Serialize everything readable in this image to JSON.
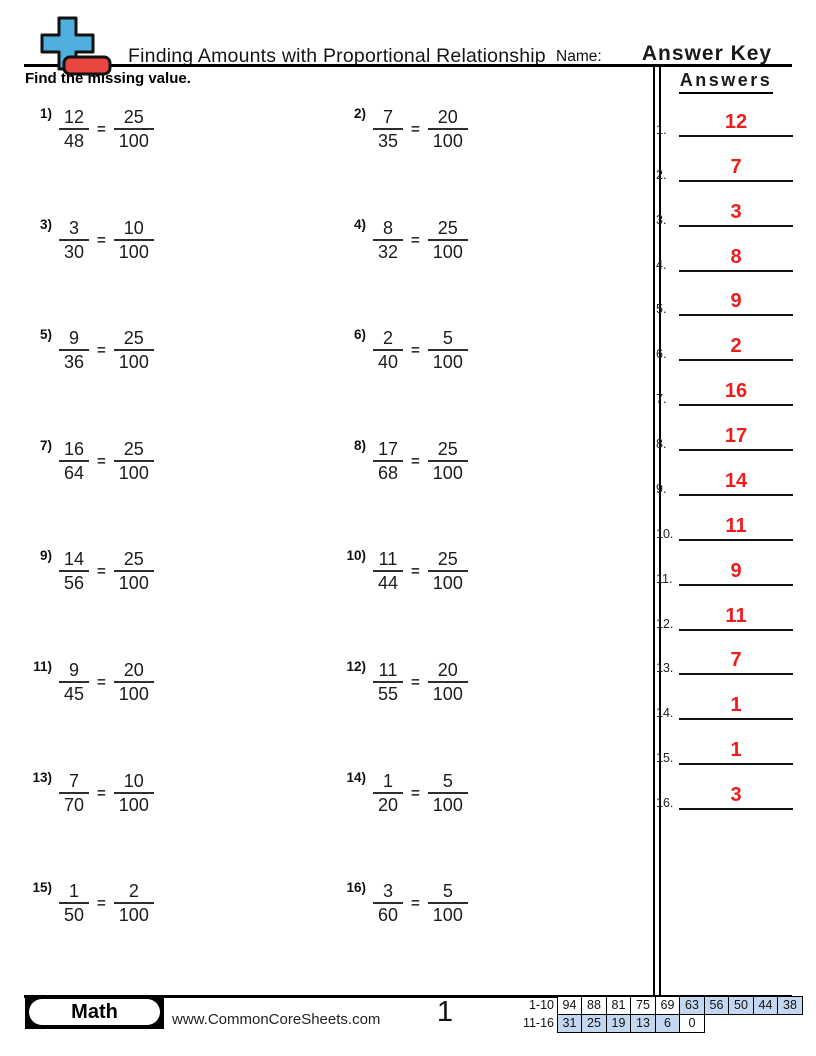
{
  "colors": {
    "accent_red": "#ee1c1c",
    "cell_blue": "#c3d7f0",
    "logo_blue": "#4fb0e0",
    "logo_red": "#e8463f"
  },
  "header": {
    "title": "Finding Amounts with Proportional Relationship",
    "name_label": "Name:",
    "answer_key": "Answer Key"
  },
  "instructions": "Find the missing value.",
  "equals_sign": "=",
  "problems": [
    {
      "label": "1)",
      "num1": "12",
      "den1": "48",
      "num2": "25",
      "den2": "100"
    },
    {
      "label": "2)",
      "num1": "7",
      "den1": "35",
      "num2": "20",
      "den2": "100"
    },
    {
      "label": "3)",
      "num1": "3",
      "den1": "30",
      "num2": "10",
      "den2": "100"
    },
    {
      "label": "4)",
      "num1": "8",
      "den1": "32",
      "num2": "25",
      "den2": "100"
    },
    {
      "label": "5)",
      "num1": "9",
      "den1": "36",
      "num2": "25",
      "den2": "100"
    },
    {
      "label": "6)",
      "num1": "2",
      "den1": "40",
      "num2": "5",
      "den2": "100"
    },
    {
      "label": "7)",
      "num1": "16",
      "den1": "64",
      "num2": "25",
      "den2": "100"
    },
    {
      "label": "8)",
      "num1": "17",
      "den1": "68",
      "num2": "25",
      "den2": "100"
    },
    {
      "label": "9)",
      "num1": "14",
      "den1": "56",
      "num2": "25",
      "den2": "100"
    },
    {
      "label": "10)",
      "num1": "11",
      "den1": "44",
      "num2": "25",
      "den2": "100"
    },
    {
      "label": "11)",
      "num1": "9",
      "den1": "45",
      "num2": "20",
      "den2": "100"
    },
    {
      "label": "12)",
      "num1": "11",
      "den1": "55",
      "num2": "20",
      "den2": "100"
    },
    {
      "label": "13)",
      "num1": "7",
      "den1": "70",
      "num2": "10",
      "den2": "100"
    },
    {
      "label": "14)",
      "num1": "1",
      "den1": "20",
      "num2": "5",
      "den2": "100"
    },
    {
      "label": "15)",
      "num1": "1",
      "den1": "50",
      "num2": "2",
      "den2": "100"
    },
    {
      "label": "16)",
      "num1": "3",
      "den1": "60",
      "num2": "5",
      "den2": "100"
    }
  ],
  "answers_panel": {
    "heading": "Answers",
    "items": [
      {
        "num": "1.",
        "value": "12"
      },
      {
        "num": "2.",
        "value": "7"
      },
      {
        "num": "3.",
        "value": "3"
      },
      {
        "num": "4.",
        "value": "8"
      },
      {
        "num": "5.",
        "value": "9"
      },
      {
        "num": "6.",
        "value": "2"
      },
      {
        "num": "7.",
        "value": "16"
      },
      {
        "num": "8.",
        "value": "17"
      },
      {
        "num": "9.",
        "value": "14"
      },
      {
        "num": "10.",
        "value": "11"
      },
      {
        "num": "11.",
        "value": "9"
      },
      {
        "num": "12.",
        "value": "11"
      },
      {
        "num": "13.",
        "value": "7"
      },
      {
        "num": "14.",
        "value": "1"
      },
      {
        "num": "15.",
        "value": "1"
      },
      {
        "num": "16.",
        "value": "3"
      }
    ]
  },
  "footer": {
    "subject": "Math",
    "site": "www.CommonCoreSheets.com",
    "page_number": "1",
    "score_table": [
      {
        "label": "1-10",
        "cells": [
          {
            "v": "94",
            "shaded": false
          },
          {
            "v": "88",
            "shaded": false
          },
          {
            "v": "81",
            "shaded": false
          },
          {
            "v": "75",
            "shaded": false
          },
          {
            "v": "69",
            "shaded": false
          },
          {
            "v": "63",
            "shaded": true
          },
          {
            "v": "56",
            "shaded": true
          },
          {
            "v": "50",
            "shaded": true
          },
          {
            "v": "44",
            "shaded": true
          },
          {
            "v": "38",
            "shaded": true
          }
        ]
      },
      {
        "label": "11-16",
        "cells": [
          {
            "v": "31",
            "shaded": true
          },
          {
            "v": "25",
            "shaded": true
          },
          {
            "v": "19",
            "shaded": true
          },
          {
            "v": "13",
            "shaded": true
          },
          {
            "v": "6",
            "shaded": true
          },
          {
            "v": "0",
            "shaded": false
          }
        ]
      }
    ]
  }
}
